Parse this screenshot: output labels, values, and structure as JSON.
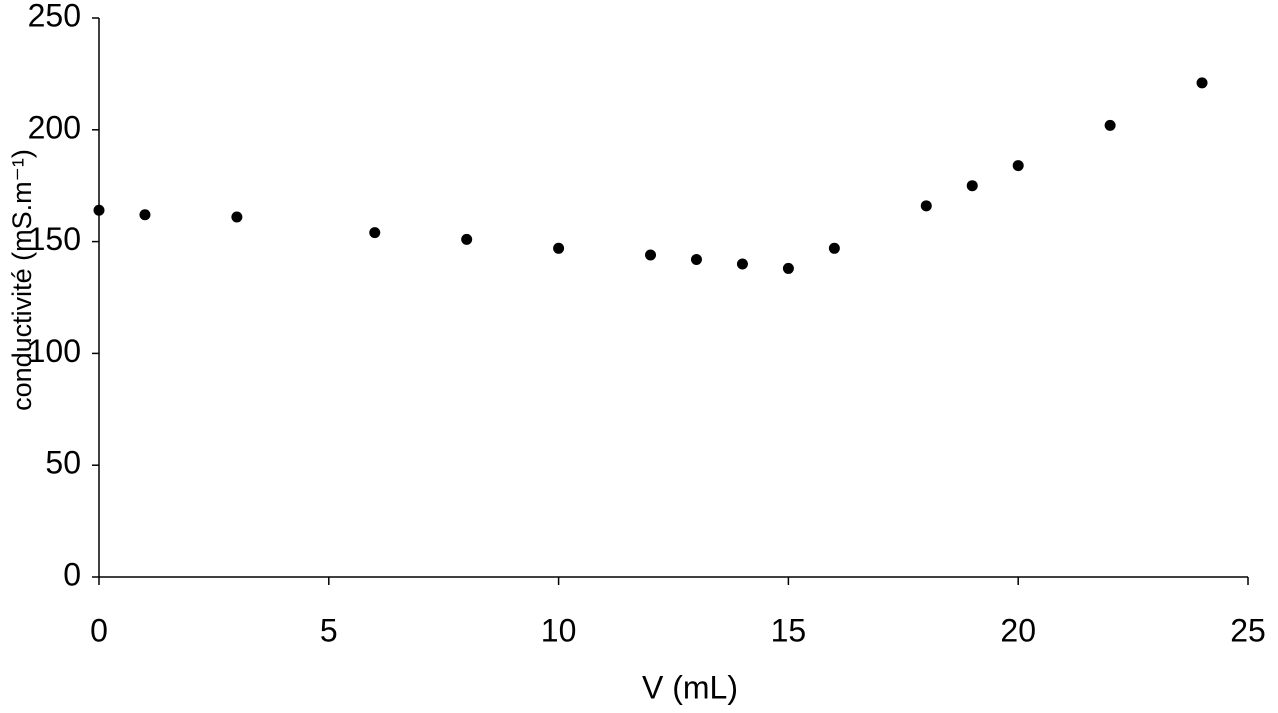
{
  "chart_data": {
    "type": "scatter",
    "x_label": "V (mL)",
    "y_label": "conductivité  (mS.m⁻¹)",
    "x": [
      0,
      1,
      3,
      6,
      8,
      10,
      12,
      13,
      14,
      15,
      16,
      18,
      19,
      20,
      22,
      24
    ],
    "values": [
      164,
      162,
      161,
      154,
      151,
      147,
      144,
      142,
      140,
      138,
      147,
      166,
      175,
      184,
      202,
      221
    ],
    "color": "#000000",
    "xlim": [
      0,
      25
    ],
    "xticks": [
      0,
      5,
      10,
      15,
      20,
      25
    ],
    "ylim": [
      0,
      250
    ],
    "yticks": [
      0,
      50,
      100,
      150,
      200,
      250
    ],
    "grid": false
  }
}
